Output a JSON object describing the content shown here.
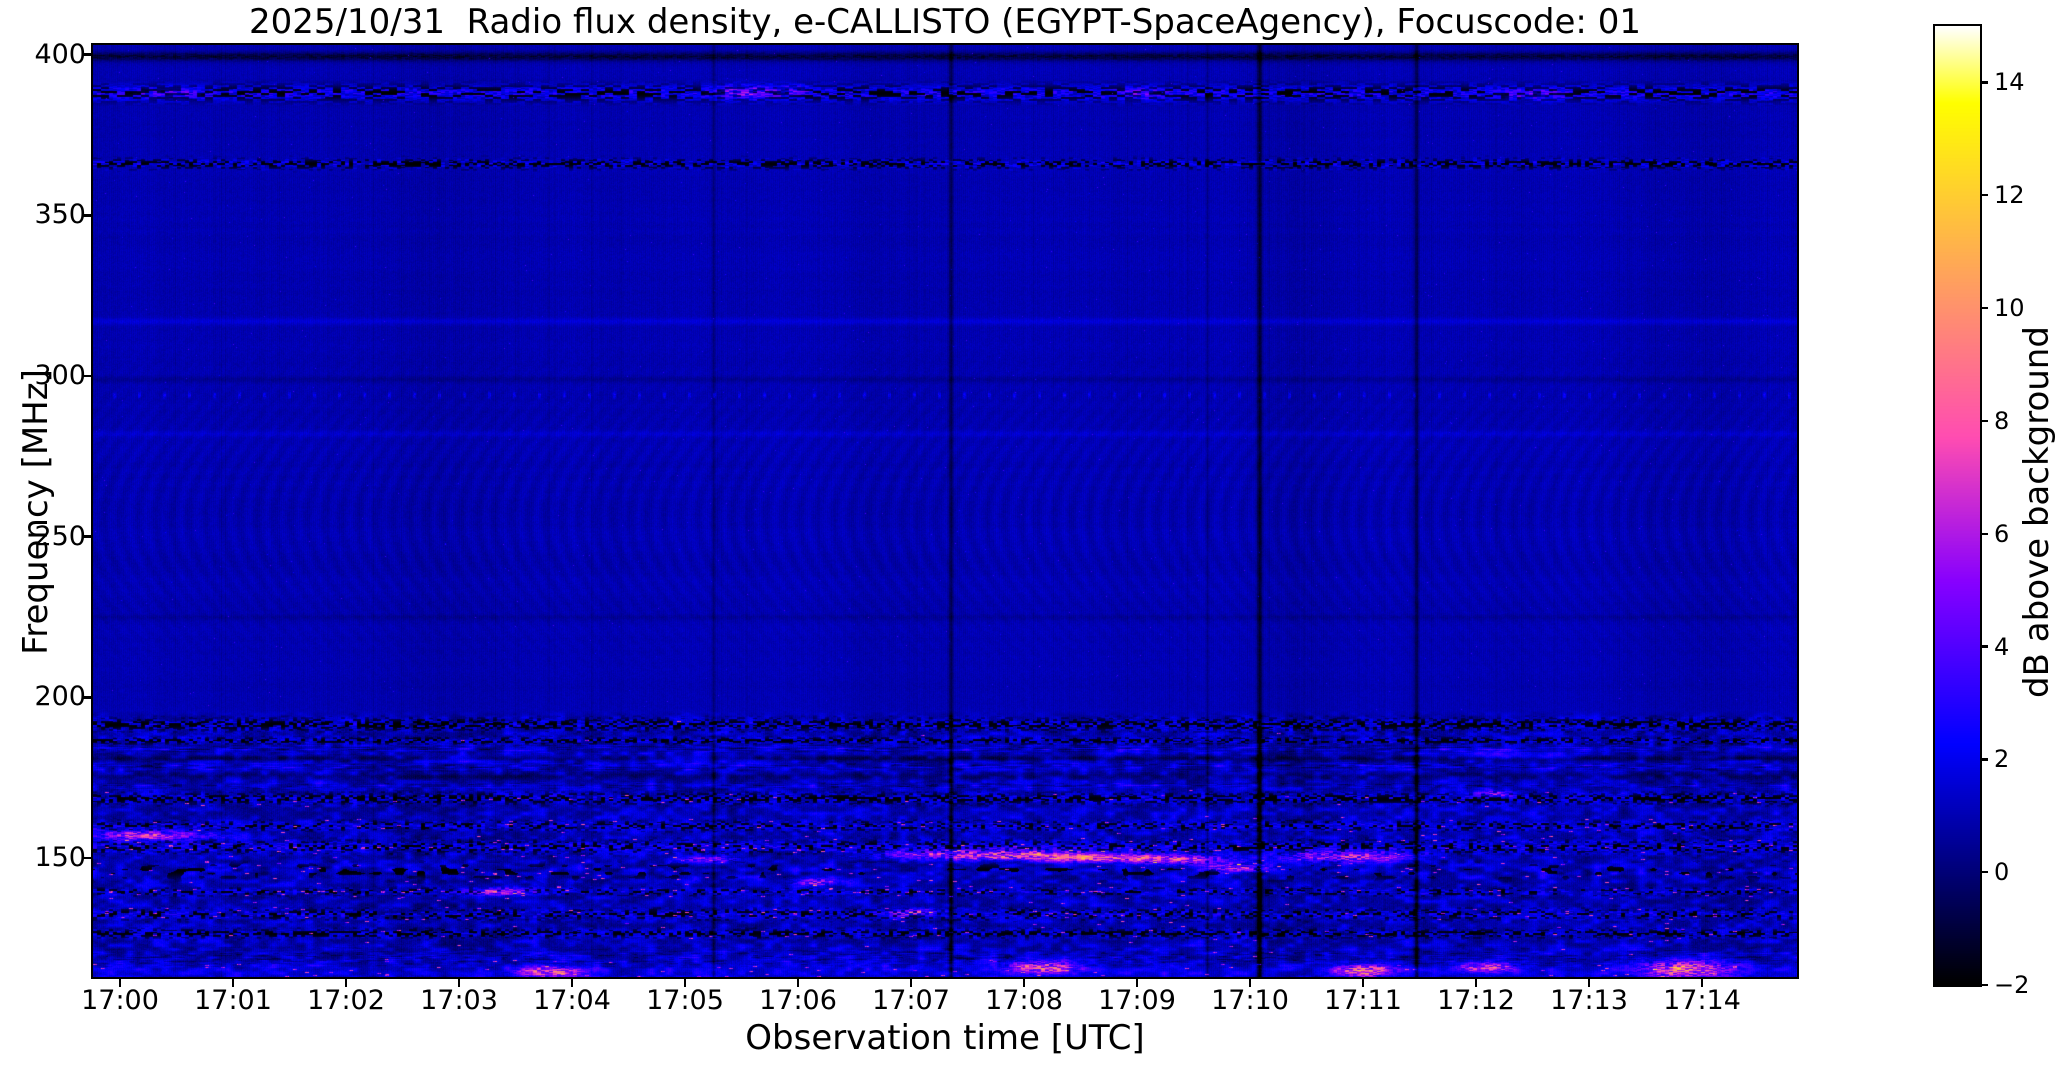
{
  "title": "2025/10/31  Radio flux density, e-CALLISTO (EGYPT-SpaceAgency), Focuscode: 01",
  "axes": {
    "xlabel": "Observation time [UTC]",
    "ylabel": "Frequency [MHz]",
    "x_ticks": [
      "17:00",
      "17:01",
      "17:02",
      "17:03",
      "17:04",
      "17:05",
      "17:06",
      "17:07",
      "17:08",
      "17:09",
      "17:10",
      "17:11",
      "17:12",
      "17:13",
      "17:14"
    ],
    "x_tick_minutes": [
      0,
      1,
      2,
      3,
      4,
      5,
      6,
      7,
      8,
      9,
      10,
      11,
      12,
      13,
      14
    ],
    "y_ticks": [
      "400",
      "350",
      "300",
      "250",
      "200",
      "150"
    ],
    "y_tick_freqs": [
      400,
      350,
      300,
      250,
      200,
      150
    ]
  },
  "colorbar": {
    "label": "dB above background",
    "tick_labels": [
      "14",
      "12",
      "10",
      "8",
      "6",
      "4",
      "2",
      "0",
      "−2"
    ],
    "tick_values": [
      14,
      12,
      10,
      8,
      6,
      4,
      2,
      0,
      -2
    ],
    "vmin": -2,
    "vmax": 15,
    "colormap": "gnuplot2"
  },
  "chart_data": {
    "type": "heatmap",
    "subtype": "radio-spectrogram",
    "title": "2025/10/31  Radio flux density, e-CALLISTO (EGYPT-SpaceAgency), Focuscode: 01",
    "xlabel": "Observation time [UTC]",
    "ylabel": "Frequency [MHz]",
    "x_ticks": [
      "17:00",
      "17:01",
      "17:02",
      "17:03",
      "17:04",
      "17:05",
      "17:06",
      "17:07",
      "17:08",
      "17:09",
      "17:10",
      "17:11",
      "17:12",
      "17:13",
      "17:14"
    ],
    "y_ticks": [
      400,
      350,
      300,
      250,
      200,
      150
    ],
    "time_span_minutes": [
      -0.24,
      14.84
    ],
    "freq_axis_mhz": [
      113,
      403
    ],
    "value_range_db": [
      -2,
      15
    ],
    "background_level_db": 0.95,
    "grid": false,
    "legend": "colorbar-right",
    "moire": {
      "f": 258,
      "s": 38,
      "amp": 0.2
    },
    "bands": [
      {
        "f": 399.4,
        "s": 1.3,
        "kind": "dark",
        "amp": -1.9
      },
      {
        "f": 388,
        "s": 2.3,
        "kind": "rfi",
        "dark": 0.42,
        "b0": 0.7,
        "b1": 3.3
      },
      {
        "f": 366,
        "s": 1.7,
        "kind": "speckle",
        "dark": 0.5,
        "bright": 0.4,
        "b0": 0.6,
        "b1": 2.8,
        "pink": 0
      },
      {
        "f": 317,
        "s": 1.1,
        "kind": "line",
        "amp": 0.65,
        "pink": 0
      },
      {
        "f": 299,
        "s": 1.0,
        "kind": "line",
        "amp": -0.5,
        "pink": 0
      },
      {
        "f": 294,
        "s": 0.9,
        "kind": "dots",
        "amp": 1.6,
        "period": 25
      },
      {
        "f": 282,
        "s": 1.0,
        "kind": "line",
        "amp": 0.5,
        "pink": 0
      },
      {
        "f": 225,
        "s": 0.9,
        "kind": "line",
        "amp": -0.45,
        "pink": 0
      },
      {
        "f": 191.5,
        "s": 2.2,
        "kind": "speckle",
        "dark": 0.55,
        "bright": 0.33,
        "b0": 0.8,
        "b1": 2.6,
        "pink": 0.001
      },
      {
        "f": 186.5,
        "s": 1.2,
        "kind": "speckle",
        "dark": 0.45,
        "bright": 0.3,
        "b0": 0.8,
        "b1": 2.4,
        "pink": 0.001
      },
      {
        "f": 184,
        "s": 1.3,
        "kind": "dashes",
        "amp": 2.2,
        "len": 20
      },
      {
        "f": 181,
        "s": 0.8,
        "kind": "line",
        "amp": -1.3,
        "pink": 0
      },
      {
        "f": 178.5,
        "s": 1.4,
        "kind": "dashes",
        "amp": 2.0,
        "len": 16
      },
      {
        "f": 175.5,
        "s": 1.0,
        "kind": "line",
        "amp": -0.8,
        "pink": 0
      },
      {
        "f": 172.5,
        "s": 1.2,
        "kind": "dashes",
        "amp": 1.6,
        "len": 14
      },
      {
        "f": 168.5,
        "s": 2.0,
        "kind": "speckle",
        "dark": 0.5,
        "bright": 0.38,
        "b0": 0.8,
        "b1": 2.6,
        "pink": 0.006
      },
      {
        "f": 160,
        "s": 1.8,
        "kind": "speckle",
        "dark": 0.3,
        "bright": 0.45,
        "b0": 1.0,
        "b1": 2.6,
        "pink": 0.01
      },
      {
        "f": 153.5,
        "s": 2.4,
        "kind": "speckle",
        "dark": 0.32,
        "bright": 0.5,
        "b0": 1.0,
        "b1": 2.8,
        "pink": 0.016
      },
      {
        "f": 146,
        "s": 2.6,
        "kind": "blobdark",
        "gap": 0.22,
        "amp": 1.1,
        "pink": 0.01
      },
      {
        "f": 139.5,
        "s": 1.4,
        "kind": "speckle",
        "dark": 0.25,
        "bright": 0.35,
        "b0": 1.0,
        "b1": 2.4,
        "pink": 0.022
      },
      {
        "f": 132.5,
        "s": 2.0,
        "kind": "speckle",
        "dark": 0.3,
        "bright": 0.42,
        "b0": 1.0,
        "b1": 2.6,
        "pink": 0.012
      },
      {
        "f": 126.5,
        "s": 1.6,
        "kind": "speckle",
        "dark": 0.5,
        "bright": 0.3,
        "b0": 0.8,
        "b1": 2.2,
        "pink": 0.004
      },
      {
        "f": 119,
        "s": 3.0,
        "kind": "dashes",
        "amp": 1.5,
        "len": 12
      },
      {
        "f": 114.5,
        "s": 2.2,
        "kind": "line",
        "amp": 0.9,
        "pink": 0.012
      }
    ],
    "events": [
      {
        "t": 5.55,
        "f": 388.5,
        "dt": 0.28,
        "df": 2.2,
        "a": 3.6,
        "streak": true
      },
      {
        "t": 5.95,
        "f": 389,
        "dt": 0.14,
        "df": 1.6,
        "a": 2.6,
        "streak": true
      },
      {
        "t": 0.45,
        "f": 388,
        "dt": 0.3,
        "df": 2.0,
        "a": 2.0,
        "streak": true
      },
      {
        "t": 9.05,
        "f": 388,
        "dt": 0.22,
        "df": 2.0,
        "a": 2.2,
        "streak": true
      },
      {
        "t": 12.5,
        "f": 387.5,
        "dt": 0.3,
        "df": 2.0,
        "a": 2.0,
        "streak": true
      },
      {
        "t": 0.25,
        "f": 157,
        "dt": 0.55,
        "df": 1.6,
        "a": 6.0,
        "streak": true
      },
      {
        "t": 3.35,
        "f": 139.5,
        "dt": 0.3,
        "df": 1.2,
        "a": 6.0,
        "streak": true
      },
      {
        "t": 5.2,
        "f": 149.5,
        "dt": 0.25,
        "df": 1.2,
        "a": 5.5,
        "streak": true
      },
      {
        "t": 6.15,
        "f": 142.5,
        "dt": 0.2,
        "df": 1.2,
        "a": 6.0,
        "streak": true
      },
      {
        "t": 7.75,
        "f": 151,
        "dt": 0.95,
        "df": 1.6,
        "a": 7.5,
        "streak": true
      },
      {
        "t": 8.6,
        "f": 150,
        "dt": 0.5,
        "df": 1.3,
        "a": 6.2,
        "streak": true
      },
      {
        "t": 9.35,
        "f": 149.5,
        "dt": 0.5,
        "df": 1.5,
        "a": 6.6,
        "streak": true
      },
      {
        "t": 9.9,
        "f": 147,
        "dt": 0.3,
        "df": 1.4,
        "a": 6.0,
        "streak": true
      },
      {
        "t": 10.85,
        "f": 150.5,
        "dt": 0.55,
        "df": 1.8,
        "a": 6.2,
        "streak": true
      },
      {
        "t": 12.15,
        "f": 170,
        "dt": 0.18,
        "df": 1.0,
        "a": 5.5,
        "streak": true
      },
      {
        "t": 12.2,
        "f": 182,
        "dt": 0.5,
        "df": 1.3,
        "a": 2.4,
        "streak": false
      },
      {
        "t": 2.9,
        "f": 181,
        "dt": 0.5,
        "df": 1.5,
        "a": 1.8,
        "streak": false
      },
      {
        "t": 5.0,
        "f": 180.5,
        "dt": 0.4,
        "df": 1.2,
        "a": 1.6,
        "streak": false
      },
      {
        "t": 7.0,
        "f": 133,
        "dt": 0.25,
        "df": 1.2,
        "a": 5.5,
        "streak": true
      },
      {
        "t": 3.8,
        "f": 114.5,
        "dt": 0.28,
        "df": 1.8,
        "a": 7.0,
        "streak": true
      },
      {
        "t": 8.15,
        "f": 116,
        "dt": 0.3,
        "df": 2.0,
        "a": 7.5,
        "streak": true
      },
      {
        "t": 11.0,
        "f": 115,
        "dt": 0.25,
        "df": 2.0,
        "a": 8.0,
        "streak": true
      },
      {
        "t": 12.1,
        "f": 116,
        "dt": 0.25,
        "df": 1.6,
        "a": 7.0,
        "streak": true
      },
      {
        "t": 13.85,
        "f": 115.5,
        "dt": 0.38,
        "df": 2.6,
        "a": 9.0,
        "streak": true
      }
    ],
    "vertical_lines": [
      {
        "t": 5.25,
        "w": 1.2,
        "amp": -0.9
      },
      {
        "t": 7.35,
        "w": 1.6,
        "amp": -1.6
      },
      {
        "t": 9.62,
        "w": 1.0,
        "amp": -0.8
      },
      {
        "t": 10.08,
        "w": 1.9,
        "amp": -2.0
      },
      {
        "t": 11.47,
        "w": 1.6,
        "amp": -1.7
      }
    ],
    "wide_columns": [
      {
        "t": 2.7,
        "w": 0.5,
        "amp": -0.2
      },
      {
        "t": 10.4,
        "w": 0.35,
        "amp": -0.22
      },
      {
        "t": 13.9,
        "w": 0.4,
        "amp": -0.15
      }
    ]
  }
}
